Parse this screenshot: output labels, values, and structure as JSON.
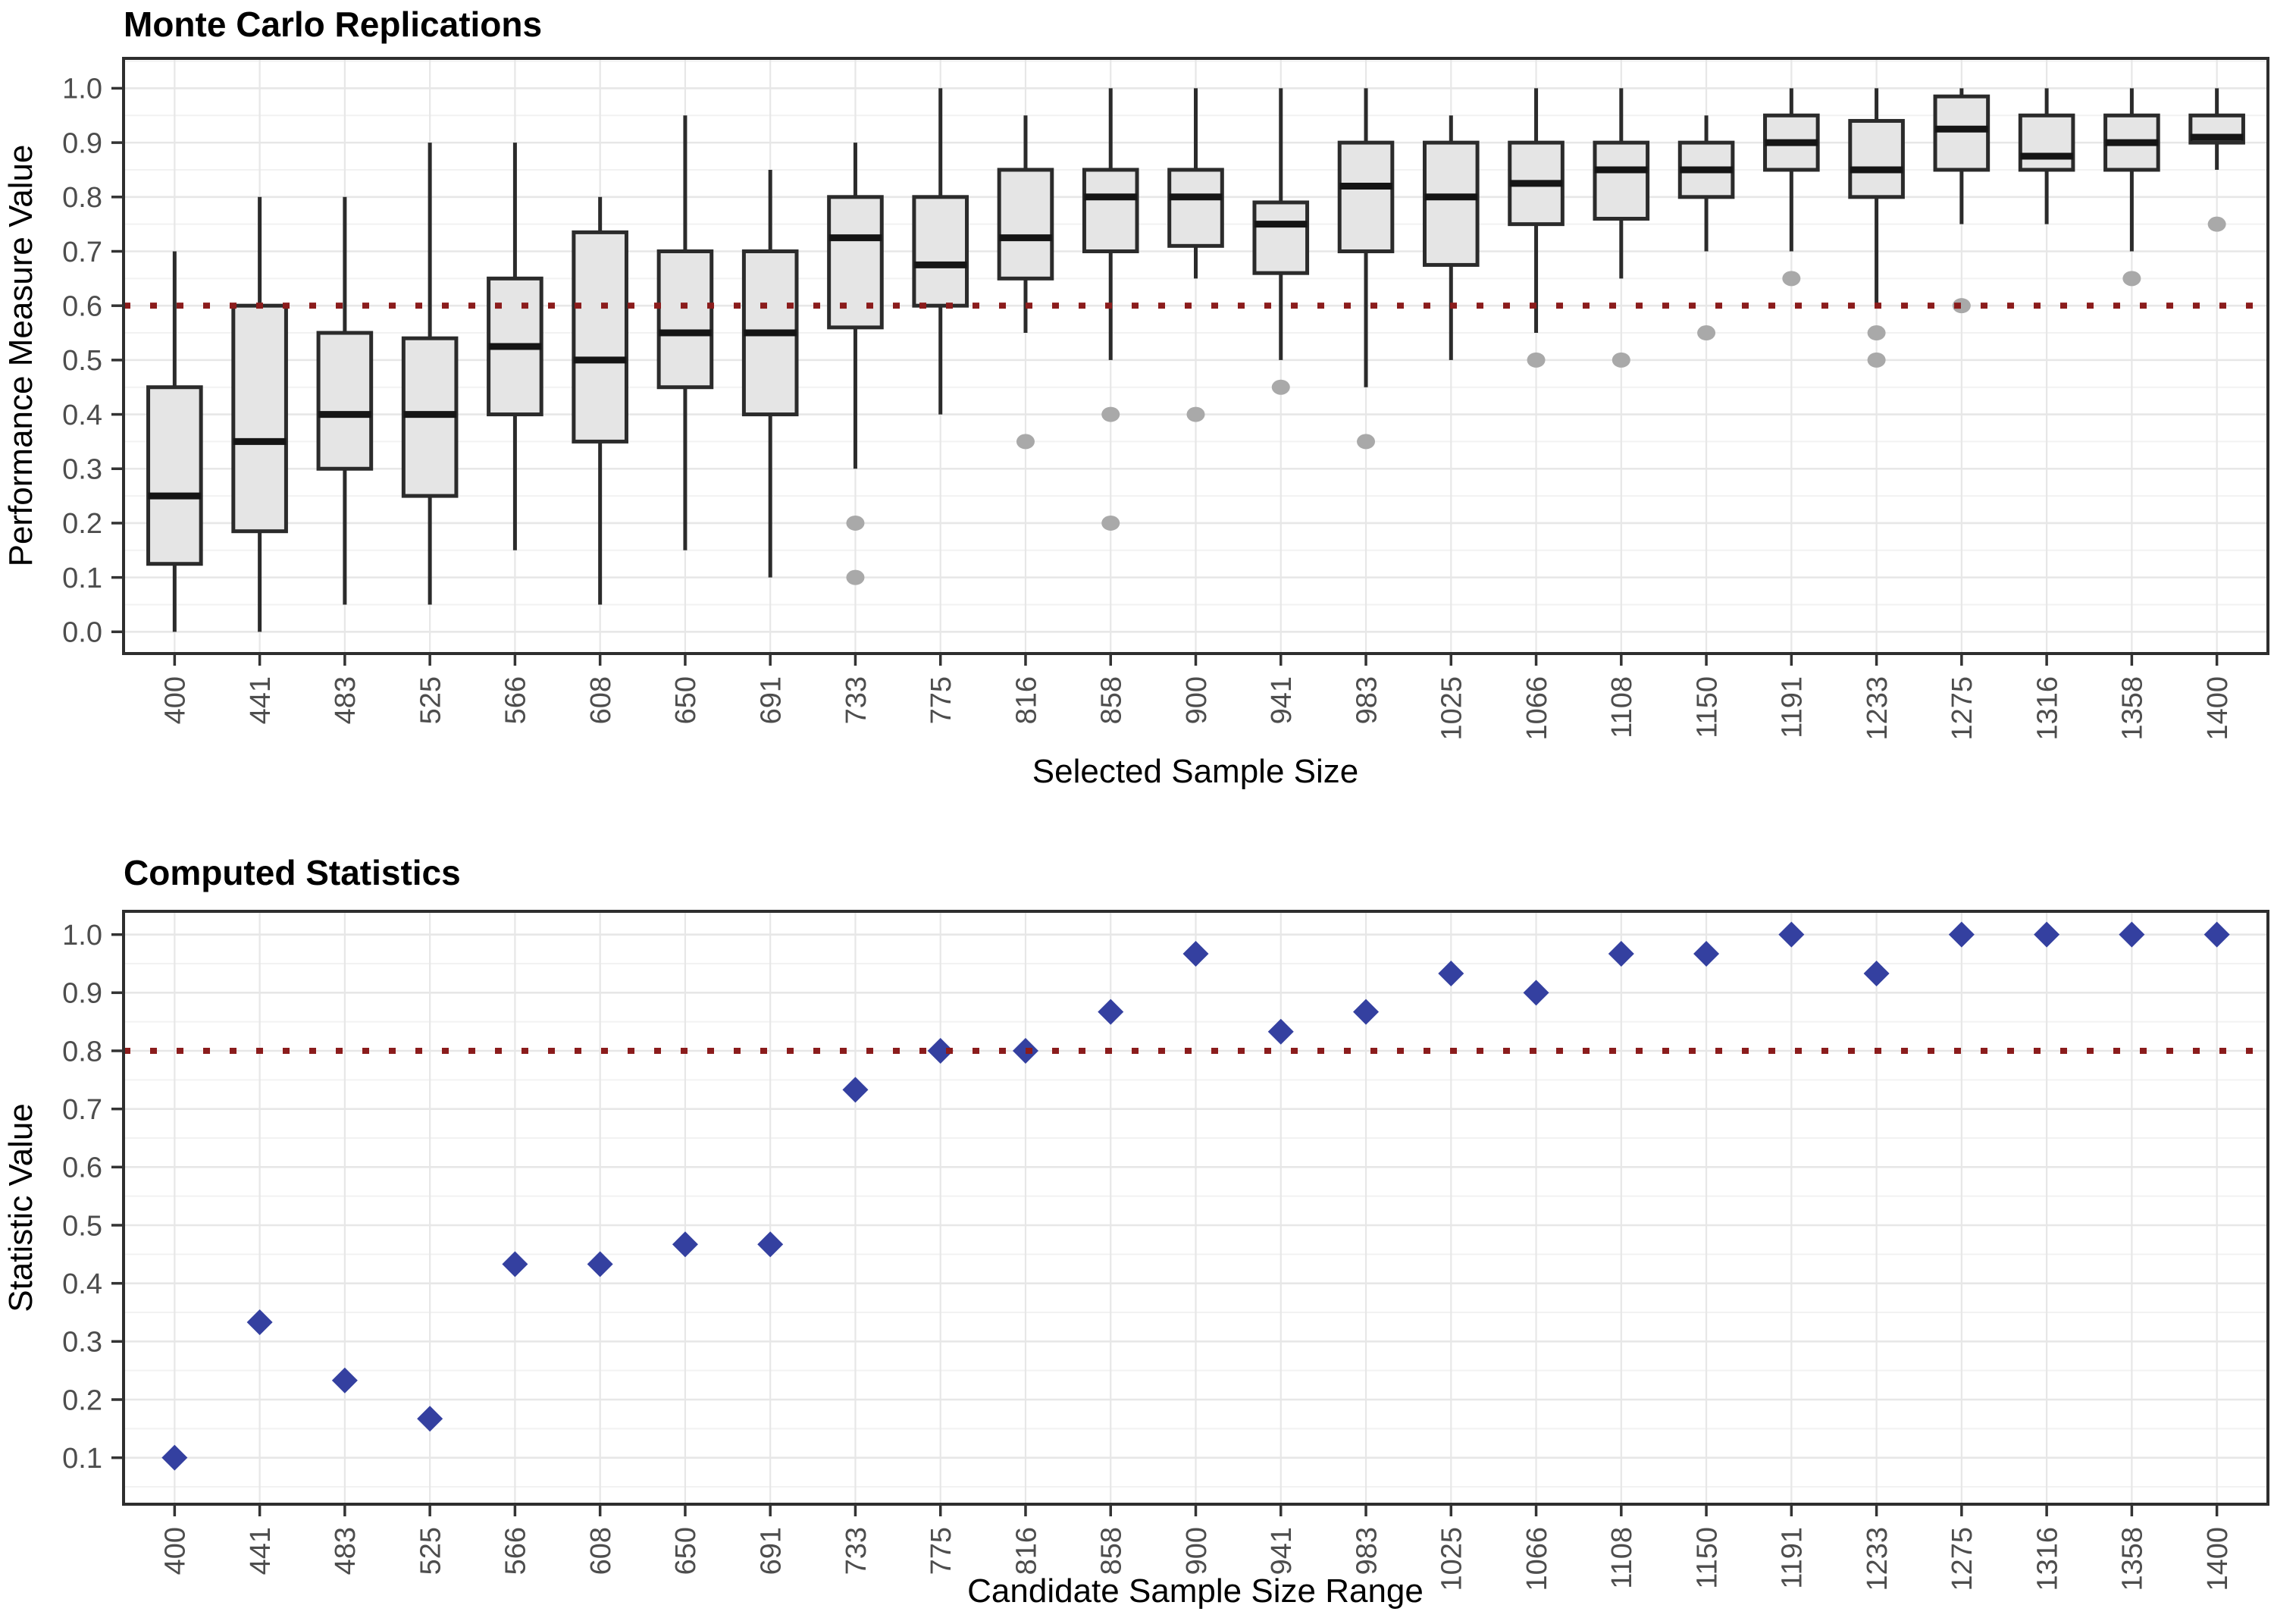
{
  "colors": {
    "box_fill": "#E5E5E5",
    "box_border": "#2B2B2B",
    "median": "#151515",
    "whisker": "#2B2B2B",
    "outlier": "#A9A9A9",
    "diamond": "#3440A0",
    "reference_line": "#8B1C1C",
    "grid_major": "#E7E7E7",
    "grid_minor": "#F2F2F2",
    "panel_border": "#2E2E2E",
    "axis_tick": "#333333",
    "tick_text": "#4D4D4D",
    "background": "#FFFFFF"
  },
  "chart_data": [
    {
      "type": "boxplot",
      "title": "Monte Carlo Replications",
      "xlabel": "Selected Sample Size",
      "ylabel": "Performance Measure Value",
      "legend": "none",
      "grid": "on",
      "reference_line": 0.6,
      "ylim": [
        -0.04,
        1.055
      ],
      "ytick_labels": [
        "0.0",
        "0.1",
        "0.2",
        "0.3",
        "0.4",
        "0.5",
        "0.6",
        "0.7",
        "0.8",
        "0.9",
        "1.0"
      ],
      "yticks": [
        0.0,
        0.1,
        0.2,
        0.3,
        0.4,
        0.5,
        0.6,
        0.7,
        0.8,
        0.9,
        1.0
      ],
      "categories": [
        "400",
        "441",
        "483",
        "525",
        "566",
        "608",
        "650",
        "691",
        "733",
        "775",
        "816",
        "858",
        "900",
        "941",
        "983",
        "1025",
        "1066",
        "1108",
        "1150",
        "1191",
        "1233",
        "1275",
        "1316",
        "1358",
        "1400"
      ],
      "boxes": [
        {
          "lo": 0.0,
          "q1": 0.125,
          "med": 0.25,
          "q3": 0.45,
          "hi": 0.7,
          "out": []
        },
        {
          "lo": 0.0,
          "q1": 0.185,
          "med": 0.35,
          "q3": 0.6,
          "hi": 0.8,
          "out": []
        },
        {
          "lo": 0.05,
          "q1": 0.3,
          "med": 0.4,
          "q3": 0.55,
          "hi": 0.8,
          "out": []
        },
        {
          "lo": 0.05,
          "q1": 0.25,
          "med": 0.4,
          "q3": 0.54,
          "hi": 0.9,
          "out": []
        },
        {
          "lo": 0.15,
          "q1": 0.4,
          "med": 0.525,
          "q3": 0.65,
          "hi": 0.9,
          "out": []
        },
        {
          "lo": 0.05,
          "q1": 0.35,
          "med": 0.5,
          "q3": 0.735,
          "hi": 0.8,
          "out": []
        },
        {
          "lo": 0.15,
          "q1": 0.45,
          "med": 0.55,
          "q3": 0.7,
          "hi": 0.95,
          "out": []
        },
        {
          "lo": 0.1,
          "q1": 0.4,
          "med": 0.55,
          "q3": 0.7,
          "hi": 0.85,
          "out": []
        },
        {
          "lo": 0.3,
          "q1": 0.56,
          "med": 0.725,
          "q3": 0.8,
          "hi": 0.9,
          "out": [
            0.2,
            0.1
          ]
        },
        {
          "lo": 0.4,
          "q1": 0.6,
          "med": 0.675,
          "q3": 0.8,
          "hi": 1.0,
          "out": []
        },
        {
          "lo": 0.55,
          "q1": 0.65,
          "med": 0.725,
          "q3": 0.85,
          "hi": 0.95,
          "out": [
            0.35
          ]
        },
        {
          "lo": 0.5,
          "q1": 0.7,
          "med": 0.8,
          "q3": 0.85,
          "hi": 1.0,
          "out": [
            0.4,
            0.2
          ]
        },
        {
          "lo": 0.65,
          "q1": 0.71,
          "med": 0.8,
          "q3": 0.85,
          "hi": 1.0,
          "out": [
            0.4
          ]
        },
        {
          "lo": 0.5,
          "q1": 0.66,
          "med": 0.75,
          "q3": 0.79,
          "hi": 1.0,
          "out": [
            0.45
          ]
        },
        {
          "lo": 0.45,
          "q1": 0.7,
          "med": 0.82,
          "q3": 0.9,
          "hi": 1.0,
          "out": [
            0.35
          ]
        },
        {
          "lo": 0.5,
          "q1": 0.675,
          "med": 0.8,
          "q3": 0.9,
          "hi": 0.95,
          "out": []
        },
        {
          "lo": 0.55,
          "q1": 0.75,
          "med": 0.825,
          "q3": 0.9,
          "hi": 1.0,
          "out": [
            0.5
          ]
        },
        {
          "lo": 0.65,
          "q1": 0.76,
          "med": 0.85,
          "q3": 0.9,
          "hi": 1.0,
          "out": [
            0.5
          ]
        },
        {
          "lo": 0.7,
          "q1": 0.8,
          "med": 0.85,
          "q3": 0.9,
          "hi": 0.95,
          "out": [
            0.55
          ]
        },
        {
          "lo": 0.7,
          "q1": 0.85,
          "med": 0.9,
          "q3": 0.95,
          "hi": 1.0,
          "out": [
            0.65
          ]
        },
        {
          "lo": 0.6,
          "q1": 0.8,
          "med": 0.85,
          "q3": 0.94,
          "hi": 1.0,
          "out": [
            0.55,
            0.5
          ]
        },
        {
          "lo": 0.75,
          "q1": 0.85,
          "med": 0.925,
          "q3": 0.985,
          "hi": 1.0,
          "out": [
            0.6
          ]
        },
        {
          "lo": 0.75,
          "q1": 0.85,
          "med": 0.875,
          "q3": 0.95,
          "hi": 1.0,
          "out": []
        },
        {
          "lo": 0.7,
          "q1": 0.85,
          "med": 0.9,
          "q3": 0.95,
          "hi": 1.0,
          "out": [
            0.65
          ]
        },
        {
          "lo": 0.85,
          "q1": 0.9,
          "med": 0.91,
          "q3": 0.95,
          "hi": 1.0,
          "out": [
            0.75
          ]
        }
      ]
    },
    {
      "type": "scatter",
      "title": "Computed Statistics",
      "xlabel": "Candidate Sample Size Range",
      "ylabel": "Statistic Value",
      "legend": "none",
      "grid": "on",
      "marker": "diamond",
      "reference_line": 0.8,
      "ylim": [
        0.02,
        1.04
      ],
      "ytick_labels": [
        "0.1",
        "0.2",
        "0.3",
        "0.4",
        "0.5",
        "0.6",
        "0.7",
        "0.8",
        "0.9",
        "1.0"
      ],
      "yticks": [
        0.1,
        0.2,
        0.3,
        0.4,
        0.5,
        0.6,
        0.7,
        0.8,
        0.9,
        1.0
      ],
      "categories": [
        "400",
        "441",
        "483",
        "525",
        "566",
        "608",
        "650",
        "691",
        "733",
        "775",
        "816",
        "858",
        "900",
        "941",
        "983",
        "1025",
        "1066",
        "1108",
        "1150",
        "1191",
        "1233",
        "1275",
        "1316",
        "1358",
        "1400"
      ],
      "values": [
        0.1,
        0.333,
        0.233,
        0.167,
        0.433,
        0.433,
        0.467,
        0.467,
        0.733,
        0.8,
        0.8,
        0.867,
        0.967,
        0.833,
        0.867,
        0.933,
        0.9,
        0.967,
        0.967,
        1.0,
        0.933,
        1.0,
        1.0,
        1.0,
        1.0
      ]
    }
  ]
}
